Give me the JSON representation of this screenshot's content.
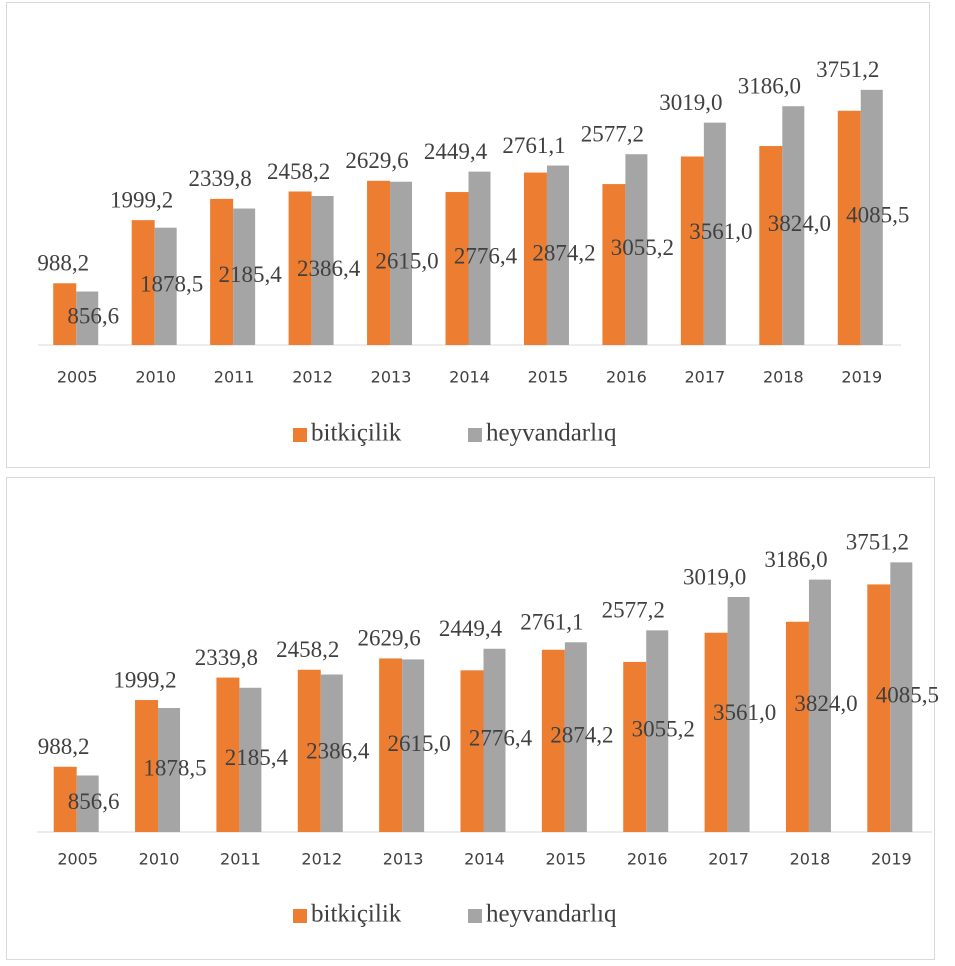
{
  "chart_data": [
    {
      "type": "bar",
      "categories": [
        "2005",
        "2010",
        "2011",
        "2012",
        "2013",
        "2014",
        "2015",
        "2016",
        "2017",
        "2018",
        "2019"
      ],
      "series": [
        {
          "name": "bitkiçilik",
          "color": "#ed7d31",
          "values": [
            988.2,
            1999.2,
            2339.8,
            2458.2,
            2629.6,
            2449.4,
            2761.1,
            2577.2,
            3019.0,
            3186.0,
            3751.2
          ],
          "value_labels": [
            "988,2",
            "1999,2",
            "2339,8",
            "2458,2",
            "2629,6",
            "2449,4",
            "2761,1",
            "2577,2",
            "3019,0",
            "3186,0",
            "3751,2"
          ]
        },
        {
          "name": "heyvandarlıq",
          "color": "#a5a5a5",
          "values": [
            856.6,
            1878.5,
            2185.4,
            2386.4,
            2615.0,
            2776.4,
            2874.2,
            3055.2,
            3561.0,
            3824.0,
            4085.5
          ],
          "value_labels": [
            "856,6",
            "1878,5",
            "2185,4",
            "2386,4",
            "2615,0",
            "2776,4",
            "2874,2",
            "3055,2",
            "3561,0",
            "3824,0",
            "4085,5"
          ]
        }
      ],
      "ylim": [
        0,
        4500
      ]
    },
    {
      "type": "bar",
      "categories": [
        "2005",
        "2010",
        "2011",
        "2012",
        "2013",
        "2014",
        "2015",
        "2016",
        "2017",
        "2018",
        "2019"
      ],
      "series": [
        {
          "name": "bitkiçilik",
          "color": "#ed7d31",
          "values": [
            988.2,
            1999.2,
            2339.8,
            2458.2,
            2629.6,
            2449.4,
            2761.1,
            2577.2,
            3019.0,
            3186.0,
            3751.2
          ],
          "value_labels": [
            "988,2",
            "1999,2",
            "2339,8",
            "2458,2",
            "2629,6",
            "2449,4",
            "2761,1",
            "2577,2",
            "3019,0",
            "3186,0",
            "3751,2"
          ]
        },
        {
          "name": "heyvandarlıq",
          "color": "#a5a5a5",
          "values": [
            856.6,
            1878.5,
            2185.4,
            2386.4,
            2615.0,
            2776.4,
            2874.2,
            3055.2,
            3561.0,
            3824.0,
            4085.5
          ],
          "value_labels": [
            "856,6",
            "1878,5",
            "2185,4",
            "2386,4",
            "2615,0",
            "2776,4",
            "2874,2",
            "3055,2",
            "3561,0",
            "3824,0",
            "4085,5"
          ]
        }
      ],
      "ylim": [
        0,
        4500
      ]
    }
  ]
}
